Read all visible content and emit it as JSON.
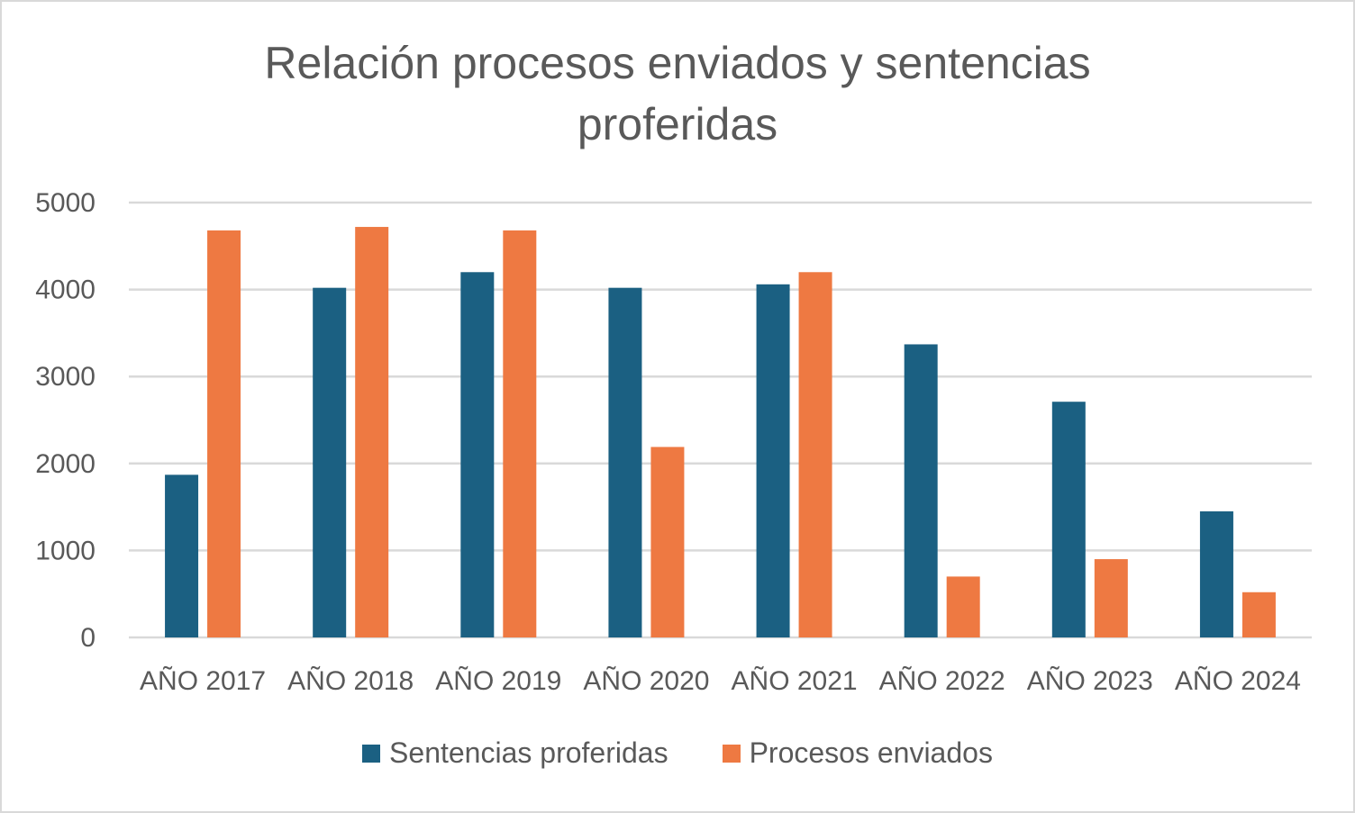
{
  "chart_data": {
    "type": "bar",
    "title": "Relación procesos enviados y sentencias proferidas",
    "categories": [
      "AÑO 2017",
      "AÑO 2018",
      "AÑO 2019",
      "AÑO 2020",
      "AÑO 2021",
      "AÑO 2022",
      "AÑO 2023",
      "AÑO 2024"
    ],
    "series": [
      {
        "name": "Sentencias proferidas",
        "color": "#1b6082",
        "values": [
          1870,
          4020,
          4200,
          4020,
          4060,
          3370,
          2710,
          1450
        ]
      },
      {
        "name": "Procesos enviados",
        "color": "#ee7942",
        "values": [
          4680,
          4720,
          4680,
          2190,
          4200,
          700,
          900,
          520
        ]
      }
    ],
    "yticks": [
      "0",
      "1000",
      "2000",
      "3000",
      "4000",
      "5000"
    ],
    "ylim": [
      0,
      5000
    ],
    "grid": true,
    "legend_position": "bottom"
  }
}
